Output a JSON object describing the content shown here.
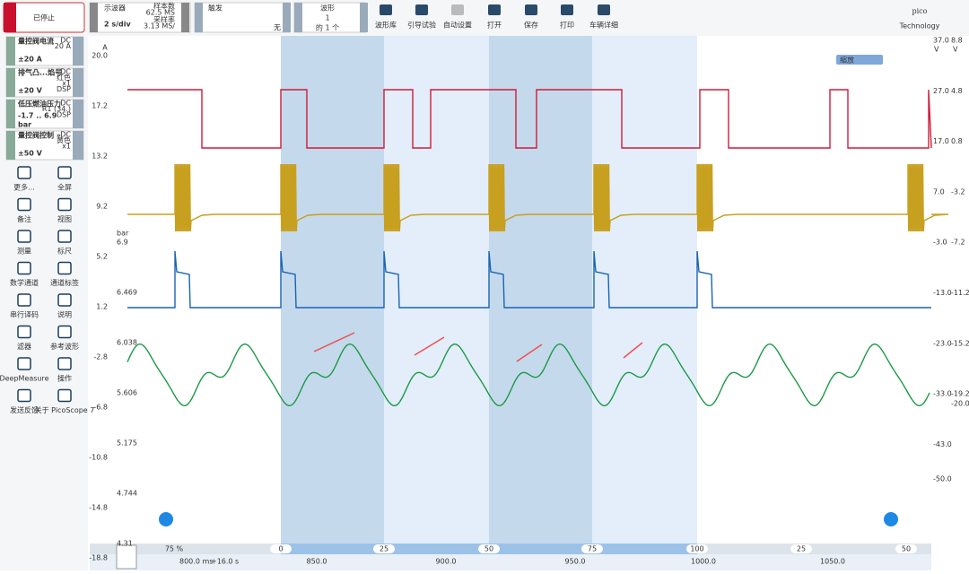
{
  "status": "已停止",
  "toolbar": {
    "mode": "示波器",
    "timebase": "2 s/div",
    "samples_label": "样本数",
    "samples": "62.5 MS",
    "rate_label": "采样率",
    "rate": "3.13 MS/",
    "trigger": "触发",
    "trigger_mode": "无",
    "waveform_label": "波形",
    "waveform_index": "1",
    "waveform_count": "的 1 个",
    "buttons": [
      "波形库",
      "引导试验",
      "自动设置",
      "打开",
      "保存",
      "打印",
      "车辆详细"
    ]
  },
  "logo": {
    "name": "pico",
    "tagline": "Technology"
  },
  "channels": [
    {
      "name": "量控阀电流",
      "info": [
        "DC",
        "20 A"
      ],
      "range": "±20 A"
    },
    {
      "name": "排气凸...焰号",
      "info": [
        "DC",
        "红色",
        "x1",
        "DSP"
      ],
      "range": "±20 V"
    },
    {
      "name": "低压燃油压力",
      "info": [
        "DC",
        "R1 (34.)",
        "DSP"
      ],
      "range": "-1.7 .. 6.9",
      "unit": "bar"
    },
    {
      "name": "量控阀控制 »",
      "info": [
        "DC",
        "黄色",
        "x1"
      ],
      "range": "±50 V"
    }
  ],
  "tools": [
    "更多...",
    "全屏",
    "备注",
    "视图",
    "测量",
    "标尺",
    "数学通道",
    "通道标签",
    "串行译码",
    "说明",
    "滤器",
    "参考波形",
    "DeepMeasure",
    "操作",
    "发送反馈",
    "关于 PicoScope 7"
  ],
  "axes": {
    "a_unit": "A",
    "a_ticks": [
      "20.0",
      "17.2",
      "13.2",
      "9.2",
      "5.2",
      "1.2",
      "-2.8",
      "-6.8",
      "-10.8",
      "-14.8",
      "-18.8"
    ],
    "c_unit": "bar",
    "c_ticks": [
      "6.9",
      "6.469",
      "6.038",
      "5.606",
      "5.175",
      "4.744",
      "4.31"
    ],
    "d_unit": "V",
    "d_ticks": [
      "37.0",
      "27.0",
      "17.0",
      "7.0",
      "-3.0",
      "-13.0",
      "-23.0",
      "-33.0",
      "-43.0",
      "-50.0"
    ],
    "b_unit": "V",
    "b_ticks": [
      "8.8",
      "4.8",
      "0.8",
      "-3.2",
      "-7.2",
      "-11.2",
      "-15.2",
      "-19.2",
      "-20.0"
    ]
  },
  "zoom_label": "缩放",
  "overview": {
    "zoom": "75 %",
    "ticks": [
      "0",
      "25",
      "50",
      "75",
      "100",
      "25",
      "50"
    ]
  },
  "time_axis": {
    "start": "800.0 ms",
    "offset": "+16.0 s",
    "ticks": [
      "850.0",
      "900.0",
      "950.0",
      "1000.0",
      "1050.0"
    ]
  }
}
